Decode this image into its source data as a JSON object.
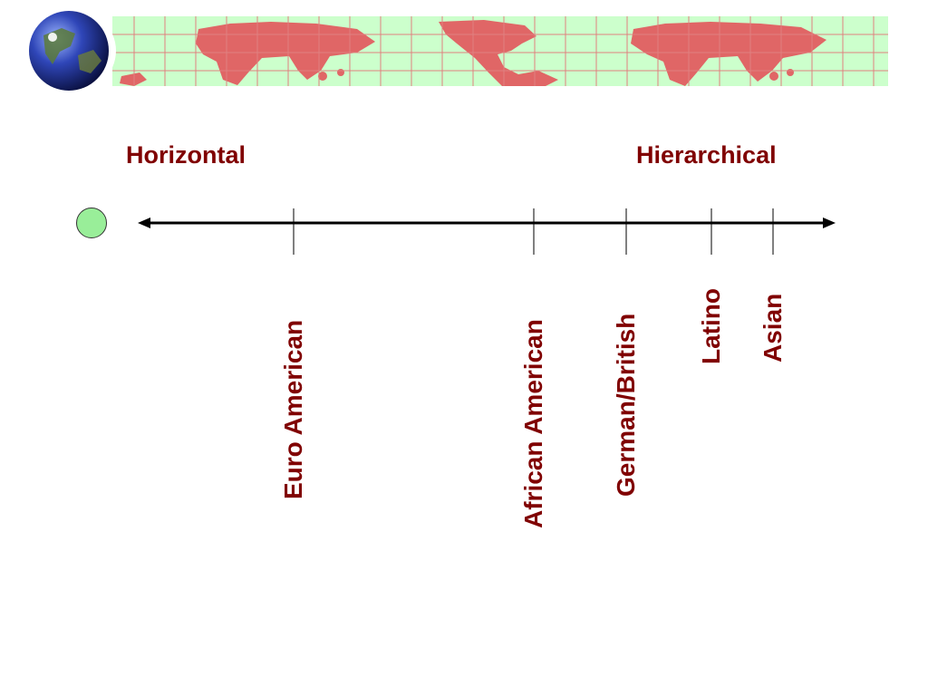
{
  "slide": {
    "left_end": "Horizontal",
    "right_end": "Hierarchical",
    "cultures": [
      {
        "label": "Euro American"
      },
      {
        "label": "African American"
      },
      {
        "label": "German/British"
      },
      {
        "label": "Latino"
      },
      {
        "label": "Asian"
      }
    ]
  },
  "colors": {
    "text": "#800000",
    "banner": "#ccffcc",
    "continents": "#e06666",
    "grid": "#e08080",
    "marker": "#99ee99"
  },
  "icons": {
    "globe": "globe-icon",
    "marker": "circle-marker-icon"
  }
}
